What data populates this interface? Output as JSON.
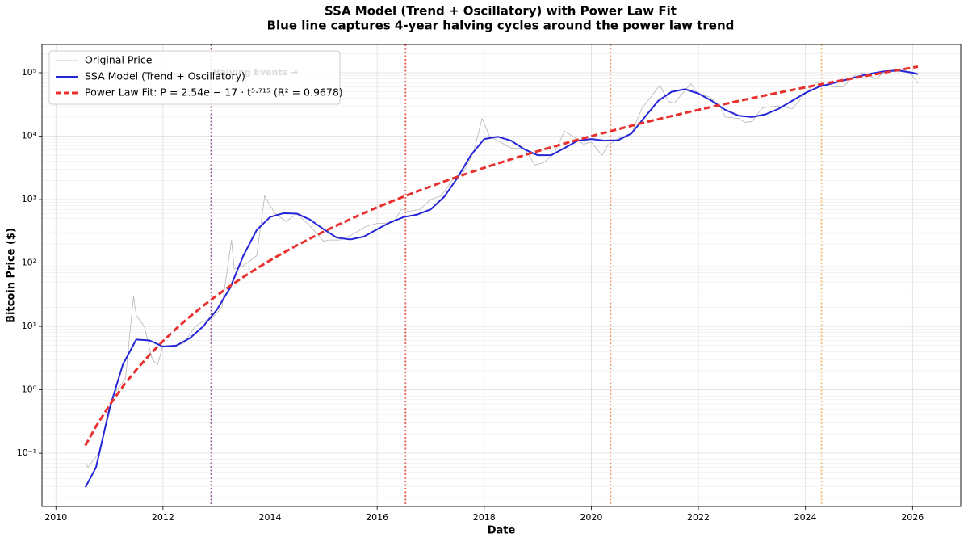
{
  "chart_data": {
    "type": "line",
    "title": "SSA Model (Trend + Oscillatory) with Power Law Fit",
    "subtitle": "Blue line captures 4-year halving cycles around the power law trend",
    "x_label": "Date",
    "y_label": "Bitcoin Price ($)",
    "annotation": "Halving Events →",
    "log_y": true,
    "grid": true,
    "legend": "upper left",
    "xlim": [
      2009.74,
      2026.9
    ],
    "ylim": [
      0.0145,
      279000
    ],
    "xticks": [
      2010,
      2012,
      2014,
      2016,
      2018,
      2020,
      2022,
      2024,
      2026
    ],
    "yticks": [
      {
        "value": 0.1,
        "label": "10⁻¹"
      },
      {
        "value": 1,
        "label": "10⁰"
      },
      {
        "value": 10,
        "label": "10¹"
      },
      {
        "value": 100,
        "label": "10²"
      },
      {
        "value": 1000,
        "label": "10³"
      },
      {
        "value": 10000,
        "label": "10⁴"
      },
      {
        "value": 100000,
        "label": "10⁵"
      }
    ],
    "halvings": [
      {
        "x": 2012.9,
        "color": "#8e4585"
      },
      {
        "x": 2016.53,
        "color": "#e8463c"
      },
      {
        "x": 2020.36,
        "color": "#f08a60"
      },
      {
        "x": 2024.3,
        "color": "#f5b461"
      }
    ],
    "x": [
      2010.55,
      2010.75,
      2011.0,
      2011.25,
      2011.5,
      2011.75,
      2012.0,
      2012.25,
      2012.5,
      2012.75,
      2013.0,
      2013.25,
      2013.5,
      2013.75,
      2014.0,
      2014.25,
      2014.5,
      2014.75,
      2015.0,
      2015.25,
      2015.5,
      2015.75,
      2016.0,
      2016.25,
      2016.5,
      2016.75,
      2017.0,
      2017.25,
      2017.5,
      2017.75,
      2018.0,
      2018.25,
      2018.5,
      2018.75,
      2019.0,
      2019.25,
      2019.5,
      2019.75,
      2020.0,
      2020.25,
      2020.5,
      2020.75,
      2021.0,
      2021.25,
      2021.5,
      2021.75,
      2022.0,
      2022.25,
      2022.5,
      2022.75,
      2023.0,
      2023.25,
      2023.5,
      2023.75,
      2024.0,
      2024.25,
      2024.5,
      2024.75,
      2025.0,
      2025.25,
      2025.5,
      2025.75,
      2026.0,
      2026.1
    ],
    "series": [
      {
        "name": "Original Price",
        "color": "#b5b5b5",
        "width": 0.8,
        "dashed": false,
        "x": [
          2010.55,
          2010.6,
          2010.8,
          2010.95,
          2011.1,
          2011.3,
          2011.45,
          2011.5,
          2011.65,
          2011.8,
          2011.9,
          2012.0,
          2012.2,
          2012.4,
          2012.6,
          2012.75,
          2012.9,
          2013.1,
          2013.28,
          2013.33,
          2013.5,
          2013.75,
          2013.9,
          2014.0,
          2014.1,
          2014.3,
          2014.5,
          2014.75,
          2015.0,
          2015.1,
          2015.3,
          2015.5,
          2015.8,
          2016.0,
          2016.3,
          2016.45,
          2016.6,
          2016.8,
          2017.0,
          2017.2,
          2017.4,
          2017.6,
          2017.8,
          2017.96,
          2018.1,
          2018.3,
          2018.5,
          2018.75,
          2018.95,
          2019.1,
          2019.3,
          2019.5,
          2019.65,
          2019.85,
          2020.0,
          2020.2,
          2020.3,
          2020.5,
          2020.75,
          2020.95,
          2021.1,
          2021.28,
          2021.45,
          2021.55,
          2021.7,
          2021.86,
          2022.0,
          2022.2,
          2022.4,
          2022.5,
          2022.75,
          2022.87,
          2023.0,
          2023.2,
          2023.5,
          2023.75,
          2023.95,
          2024.2,
          2024.5,
          2024.7,
          2024.95,
          2025.1,
          2025.3,
          2025.5,
          2025.75,
          2025.85,
          2026.0,
          2026.1
        ],
        "values": [
          0.07,
          0.06,
          0.1,
          0.3,
          0.9,
          1.5,
          30,
          15,
          10,
          3,
          2.5,
          5,
          4.8,
          5.5,
          10,
          12,
          13,
          20,
          230,
          80,
          90,
          130,
          1150,
          800,
          600,
          450,
          600,
          380,
          220,
          230,
          230,
          270,
          380,
          420,
          430,
          700,
          650,
          700,
          1000,
          1150,
          2000,
          2600,
          5500,
          19000,
          10000,
          8000,
          6500,
          6400,
          3500,
          3800,
          5200,
          12000,
          10000,
          7500,
          8000,
          5000,
          7000,
          9200,
          11000,
          28000,
          40000,
          63000,
          35000,
          33000,
          47000,
          67000,
          45000,
          42000,
          30000,
          20000,
          19000,
          16500,
          17000,
          28000,
          30000,
          27000,
          42000,
          70000,
          60000,
          60000,
          95000,
          100000,
          80000,
          105000,
          115000,
          110000,
          90000,
          68000
        ]
      },
      {
        "name": "SSA Model (Trend + Oscillatory)",
        "color": "#2525d8",
        "width": 2,
        "dashed": false,
        "values": [
          0.029,
          0.06,
          0.5,
          2.5,
          6.2,
          6.0,
          4.8,
          5.0,
          6.5,
          10,
          18,
          40,
          130,
          330,
          530,
          610,
          600,
          480,
          340,
          250,
          235,
          260,
          340,
          440,
          530,
          580,
          700,
          1100,
          2200,
          5000,
          9000,
          9800,
          8500,
          6200,
          5000,
          5000,
          6500,
          8500,
          9000,
          8500,
          8600,
          11000,
          20000,
          36000,
          50000,
          55000,
          47000,
          36000,
          26000,
          21000,
          20000,
          22000,
          27000,
          36000,
          48000,
          60000,
          68000,
          77000,
          88000,
          98000,
          106000,
          108000,
          100000,
          95000
        ]
      },
      {
        "name": "Power Law Fit: P = 2.54e − 17 · t⁵·⁷¹⁵ (R² = 0.9678)",
        "color": "#e8302e",
        "width": 3,
        "dashed": true,
        "values": [
          0.132,
          0.265,
          0.57,
          1.13,
          2.07,
          3.56,
          5.87,
          9.27,
          14.2,
          21.1,
          30.5,
          43.2,
          60,
          81.7,
          110,
          145,
          189,
          244,
          311,
          393,
          491,
          611,
          753,
          919,
          1117,
          1349,
          1614,
          1928,
          2286,
          2698,
          3170,
          3707,
          4315,
          5012,
          5794,
          6668,
          7656,
          8770,
          10000,
          11350,
          12880,
          14590,
          16440,
          18490,
          20750,
          23230,
          25940,
          28970,
          32210,
          35810,
          39720,
          43950,
          48530,
          53460,
          58880,
          64710,
          71120,
          77800,
          85110,
          93110,
          101600,
          110700,
          120500,
          124500
        ]
      }
    ]
  }
}
